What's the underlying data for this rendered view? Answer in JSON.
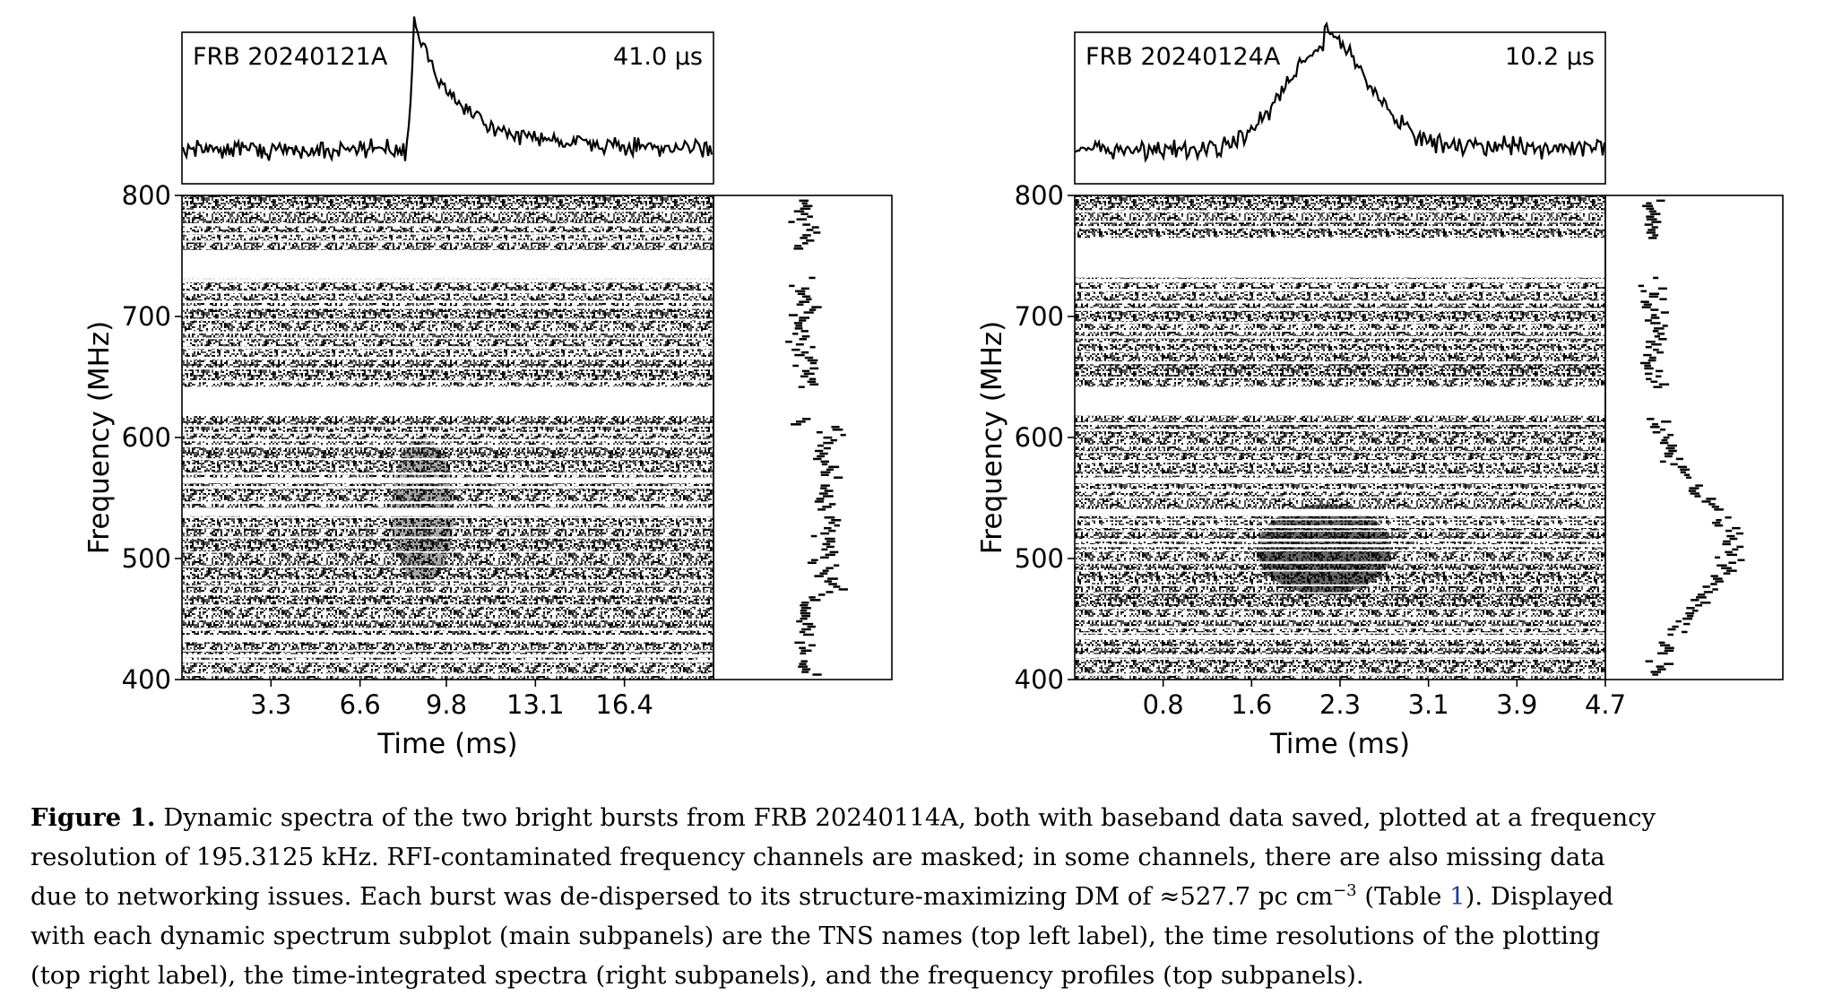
{
  "chart_data": [
    {
      "type": "heatmap",
      "panel_label": "FRB 20240121A",
      "resolution_label": "41.0 µs",
      "xlabel": "Time (ms)",
      "ylabel": "Frequency (MHz)",
      "xticks": [
        "3.3",
        "6.6",
        "9.8",
        "13.1",
        "16.4"
      ],
      "xtick_values": [
        3.3,
        6.6,
        9.8,
        13.1,
        16.4
      ],
      "xlim": [
        0,
        19.7
      ],
      "yticks": [
        "400",
        "500",
        "600",
        "700",
        "800"
      ],
      "ytick_values": [
        400,
        500,
        600,
        700,
        800
      ],
      "ylim": [
        400,
        800
      ],
      "burst_time_ms": 8.6,
      "burst_band_mhz": [
        480,
        600
      ],
      "masked_bands_mhz": [
        [
          733,
          755
        ],
        [
          728,
          731
        ],
        [
          618,
          642
        ],
        [
          562,
          567
        ],
        [
          535,
          541
        ],
        [
          433,
          437
        ],
        [
          418,
          421
        ]
      ],
      "profile_peak_time_ms": 8.6,
      "spectrum_peak_mhz": 500
    },
    {
      "type": "heatmap",
      "panel_label": "FRB 20240124A",
      "resolution_label": "10.2 µs",
      "xlabel": "Time (ms)",
      "ylabel": "Frequency (MHz)",
      "xticks": [
        "0.8",
        "1.6",
        "2.3",
        "3.1",
        "3.9",
        "4.7"
      ],
      "xtick_values": [
        0.78,
        1.56,
        2.34,
        3.12,
        3.9,
        4.68
      ],
      "xlim": [
        0,
        4.68
      ],
      "yticks": [
        "400",
        "500",
        "600",
        "700",
        "800"
      ],
      "ytick_values": [
        400,
        500,
        600,
        700,
        800
      ],
      "ylim": [
        400,
        800
      ],
      "burst_time_ms": 2.2,
      "burst_band_mhz": [
        470,
        545
      ],
      "masked_bands_mhz": [
        [
          733,
          765
        ],
        [
          728,
          731
        ],
        [
          618,
          642
        ],
        [
          562,
          567
        ],
        [
          535,
          541
        ],
        [
          433,
          437
        ],
        [
          418,
          421
        ]
      ],
      "profile_peak_time_ms": 2.2,
      "spectrum_peak_mhz": 510
    }
  ],
  "caption": {
    "label": "Figure 1.",
    "lines": [
      " Dynamic spectra of the two bright bursts from FRB 20240114A, both with baseband data saved, plotted at a frequency",
      "resolution of 195.3125 kHz.  RFI-contaminated frequency channels are masked; in some channels, there are also missing data",
      "due to networking issues.  Each burst was de-dispersed to its structure-maximizing DM of ≈527.7 pc cm",
      "with each dynamic spectrum subplot (main subpanels) are the TNS names (top left label), the time resolutions of the plotting",
      "(top right label), the time-integrated spectra (right subpanels), and the frequency profiles (top subpanels)."
    ],
    "sup": "−3",
    "line3_after_sup": " (Table ",
    "table_ref": "1",
    "line3_end": ").  Displayed"
  }
}
